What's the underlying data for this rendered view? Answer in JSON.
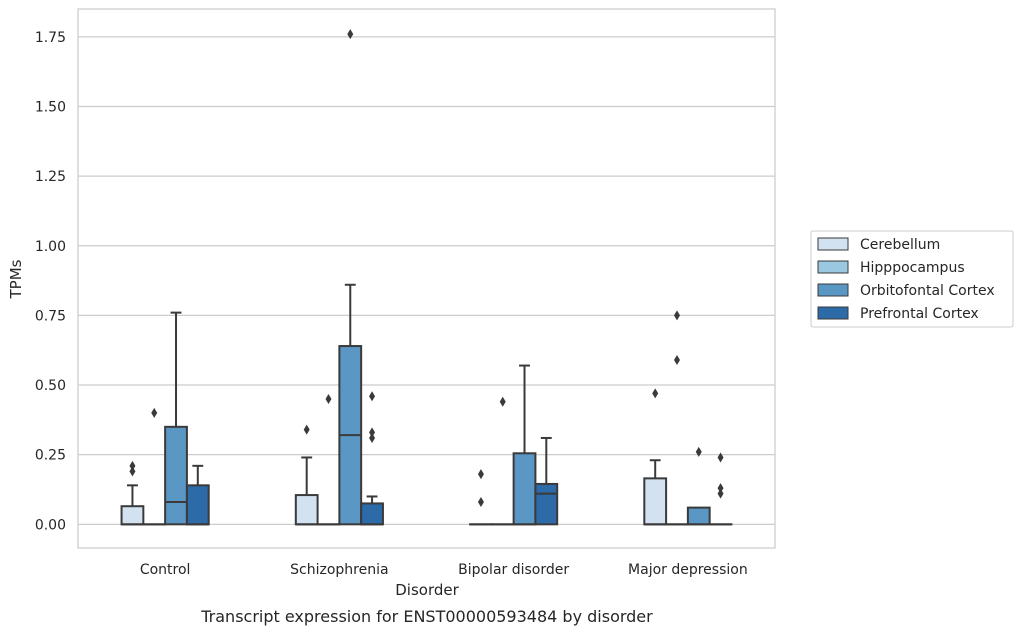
{
  "caption": "Transcript expression for ENST00000593484 by disorder",
  "chart_data": {
    "type": "box",
    "xlabel": "Disorder",
    "ylabel": "TPMs",
    "ylim": [
      -0.085,
      1.85
    ],
    "yticks": [
      0.0,
      0.25,
      0.5,
      0.75,
      1.0,
      1.25,
      1.5,
      1.75
    ],
    "ytick_labels": [
      "0.00",
      "0.25",
      "0.50",
      "0.75",
      "1.00",
      "1.25",
      "1.50",
      "1.75"
    ],
    "grid": "horizontal",
    "legend_position": "right",
    "categories": [
      "Control",
      "Schizophrenia",
      "Bipolar disorder",
      "Major depression"
    ],
    "series": [
      {
        "name": "Cerebellum",
        "color": "#d2e2f1",
        "boxes": [
          {
            "q1": 0.0,
            "median": 0.0,
            "q3": 0.065,
            "whislo": 0.0,
            "whishi": 0.14,
            "fliers": [
              0.19,
              0.21
            ]
          },
          {
            "q1": 0.0,
            "median": 0.0,
            "q3": 0.105,
            "whislo": 0.0,
            "whishi": 0.24,
            "fliers": [
              0.34
            ]
          },
          {
            "q1": 0.0,
            "median": 0.0,
            "q3": 0.0,
            "whislo": 0.0,
            "whishi": 0.0,
            "fliers": [
              0.08,
              0.18
            ]
          },
          {
            "q1": 0.0,
            "median": 0.0,
            "q3": 0.165,
            "whislo": 0.0,
            "whishi": 0.23,
            "fliers": [
              0.47
            ]
          }
        ]
      },
      {
        "name": "Hipppocampus",
        "color": "#9ac8e0",
        "boxes": [
          {
            "q1": 0.0,
            "median": 0.0,
            "q3": 0.0,
            "whislo": 0.0,
            "whishi": 0.0,
            "fliers": [
              0.4
            ]
          },
          {
            "q1": 0.0,
            "median": 0.0,
            "q3": 0.0,
            "whislo": 0.0,
            "whishi": 0.0,
            "fliers": [
              0.45
            ]
          },
          {
            "q1": 0.0,
            "median": 0.0,
            "q3": 0.0,
            "whislo": 0.0,
            "whishi": 0.0,
            "fliers": [
              0.44
            ]
          },
          {
            "q1": 0.0,
            "median": 0.0,
            "q3": 0.0,
            "whislo": 0.0,
            "whishi": 0.0,
            "fliers": [
              0.59,
              0.75
            ]
          }
        ]
      },
      {
        "name": "Orbitofontal Cortex",
        "color": "#5a97c5",
        "boxes": [
          {
            "q1": 0.0,
            "median": 0.08,
            "q3": 0.35,
            "whislo": 0.0,
            "whishi": 0.76,
            "fliers": []
          },
          {
            "q1": 0.0,
            "median": 0.32,
            "q3": 0.64,
            "whislo": 0.0,
            "whishi": 0.86,
            "fliers": [
              1.76
            ]
          },
          {
            "q1": 0.0,
            "median": 0.0,
            "q3": 0.255,
            "whislo": 0.0,
            "whishi": 0.57,
            "fliers": []
          },
          {
            "q1": 0.0,
            "median": 0.0,
            "q3": 0.06,
            "whislo": 0.0,
            "whishi": 0.06,
            "fliers": [
              0.26
            ]
          }
        ]
      },
      {
        "name": "Prefrontal Cortex",
        "color": "#2d6aa8",
        "boxes": [
          {
            "q1": 0.0,
            "median": 0.0,
            "q3": 0.14,
            "whislo": 0.0,
            "whishi": 0.21,
            "fliers": []
          },
          {
            "q1": 0.0,
            "median": 0.0,
            "q3": 0.075,
            "whislo": 0.0,
            "whishi": 0.1,
            "fliers": [
              0.31,
              0.33,
              0.46
            ]
          },
          {
            "q1": 0.0,
            "median": 0.11,
            "q3": 0.145,
            "whislo": 0.0,
            "whishi": 0.31,
            "fliers": []
          },
          {
            "q1": 0.0,
            "median": 0.0,
            "q3": 0.0,
            "whislo": 0.0,
            "whishi": 0.0,
            "fliers": [
              0.11,
              0.13,
              0.24
            ]
          }
        ]
      }
    ]
  }
}
